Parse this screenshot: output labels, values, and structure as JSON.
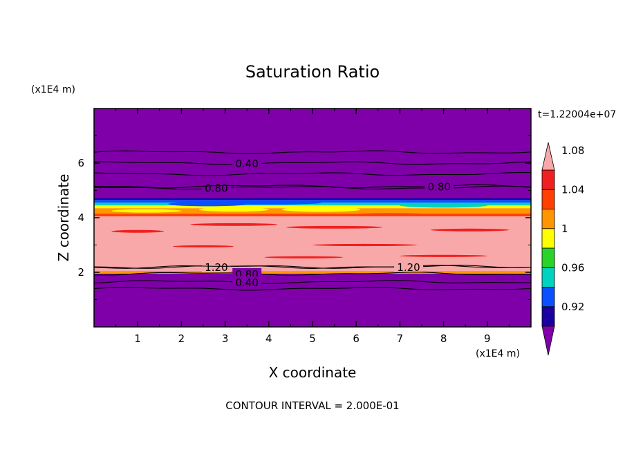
{
  "chart_data": {
    "type": "heatmap",
    "title": "Saturation Ratio",
    "xlabel": "X coordinate",
    "ylabel": "Z coordinate",
    "x_unit": "(x1E4 m)",
    "y_unit": "(x1E4 m)",
    "time_label": "t=1.22004e+07",
    "footer": "CONTOUR INTERVAL = 2.000E-01",
    "xlim": [
      0,
      10
    ],
    "ylim": [
      0,
      8
    ],
    "x_ticks": [
      "1",
      "2",
      "3",
      "4",
      "5",
      "6",
      "7",
      "8",
      "9"
    ],
    "y_ticks": [
      "2",
      "4",
      "6"
    ],
    "colorbar_levels": [
      "0.92",
      "0.96",
      "1",
      "1.04",
      "1.08"
    ],
    "colorbar_colors": [
      "#7f00a8",
      "#1a00a0",
      "#0a50ff",
      "#00d2c0",
      "#28d428",
      "#ffff00",
      "#ff9600",
      "#ff4000",
      "#f02020",
      "#f8a8a8"
    ],
    "layers": [
      {
        "z0": 0,
        "z1": 1.95,
        "color": "#7f00a8"
      },
      {
        "z0": 1.95,
        "z1": 2.05,
        "color": "#ff9600"
      },
      {
        "z0": 2.05,
        "z1": 4.05,
        "color": "#f8a8a8"
      },
      {
        "z0": 4.05,
        "z1": 4.15,
        "color": "#ff4000"
      },
      {
        "z0": 4.15,
        "z1": 4.35,
        "color": "#ff9600"
      },
      {
        "z0": 4.35,
        "z1": 4.45,
        "color": "#ffff00"
      },
      {
        "z0": 4.45,
        "z1": 4.55,
        "color": "#00d2c0"
      },
      {
        "z0": 4.55,
        "z1": 4.65,
        "color": "#0a50ff"
      },
      {
        "z0": 4.65,
        "z1": 4.72,
        "color": "#1a00a0"
      },
      {
        "z0": 4.72,
        "z1": 8,
        "color": "#7f00a8"
      }
    ],
    "contours": [
      {
        "z": 6.4,
        "label": ""
      },
      {
        "z": 6.0,
        "label": "0.40",
        "label_x": 3.5
      },
      {
        "z": 5.6,
        "label": ""
      },
      {
        "z": 5.1,
        "label": "0.80",
        "label_x": 2.8
      },
      {
        "z": 5.15,
        "label": "0.80",
        "label_x": 7.9
      },
      {
        "z": 2.2,
        "label": "1.20",
        "label_x": 2.8
      },
      {
        "z": 2.2,
        "label": "1.20",
        "label_x": 7.2
      },
      {
        "z": 1.95,
        "label": "0.80",
        "label_x": 3.5
      },
      {
        "z": 1.65,
        "label": "0.40",
        "label_x": 3.5
      },
      {
        "z": 1.4,
        "label": ""
      }
    ]
  }
}
